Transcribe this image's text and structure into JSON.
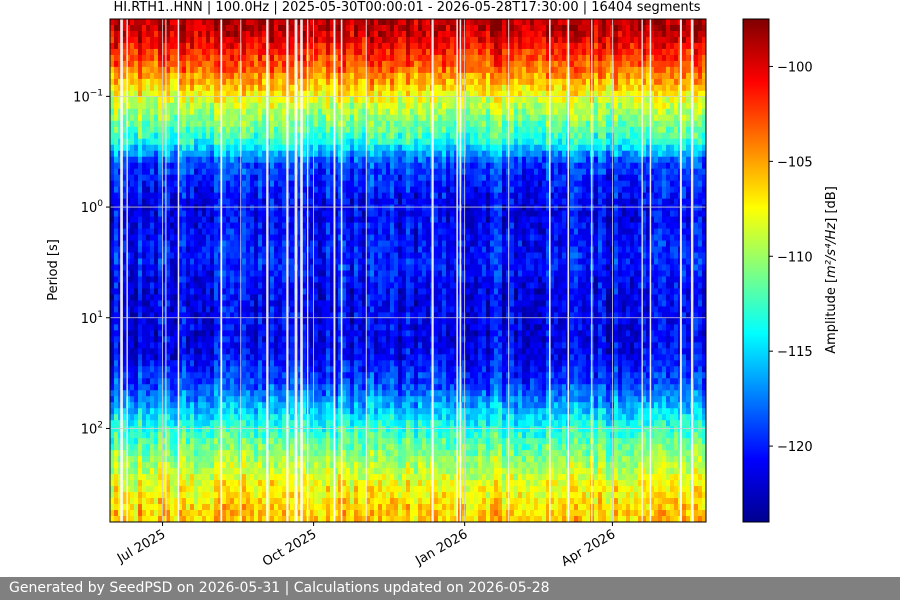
{
  "chart_data": {
    "type": "heatmap",
    "title": "HI.RTH1..HNN | 100.0Hz | 2025-05-30T00:00:01 - 2026-05-28T17:30:00 | 16404 segments",
    "ylabel": "Period [s]",
    "xlabel": "",
    "y_scale": "log",
    "y_inverted": true,
    "ylim": [
      0.02,
      700
    ],
    "xlim": [
      "2025-05-30",
      "2026-05-28"
    ],
    "y_ticks": [
      {
        "value": 0.1,
        "base": "10",
        "exp": "−1"
      },
      {
        "value": 1,
        "base": "10",
        "exp": "0"
      },
      {
        "value": 10,
        "base": "10",
        "exp": "1"
      },
      {
        "value": 100,
        "base": "10",
        "exp": "2"
      }
    ],
    "x_ticks": [
      {
        "date": "2025-07-01",
        "label": "Jul 2025"
      },
      {
        "date": "2025-10-01",
        "label": "Oct 2025"
      },
      {
        "date": "2026-01-01",
        "label": "Jan 2026"
      },
      {
        "date": "2026-04-01",
        "label": "Apr 2026"
      }
    ],
    "grid": true,
    "colormap": "jet",
    "colorbar": {
      "label_prefix": "Amplitude [",
      "label_unit": "m²/s⁴/Hz",
      "label_suffix": "] [dB]",
      "range": [
        -124,
        -97.5
      ],
      "ticks": [
        -100,
        -105,
        -110,
        -115,
        -120
      ],
      "tick_labels": [
        "−100",
        "−105",
        "−110",
        "−115",
        "−120"
      ]
    },
    "approx_mean_amplitude_by_period": [
      {
        "period": 0.025,
        "dB": -99
      },
      {
        "period": 0.06,
        "dB": -104
      },
      {
        "period": 0.12,
        "dB": -109
      },
      {
        "period": 0.25,
        "dB": -113
      },
      {
        "period": 0.4,
        "dB": -119
      },
      {
        "period": 1,
        "dB": -121
      },
      {
        "period": 3,
        "dB": -120
      },
      {
        "period": 6,
        "dB": -121
      },
      {
        "period": 20,
        "dB": -121
      },
      {
        "period": 40,
        "dB": -119
      },
      {
        "period": 100,
        "dB": -113
      },
      {
        "period": 300,
        "dB": -108
      },
      {
        "period": 600,
        "dB": -106
      }
    ]
  },
  "footer": {
    "text": "Generated by SeedPSD on 2026-05-31 | Calculations updated on 2026-05-28"
  }
}
